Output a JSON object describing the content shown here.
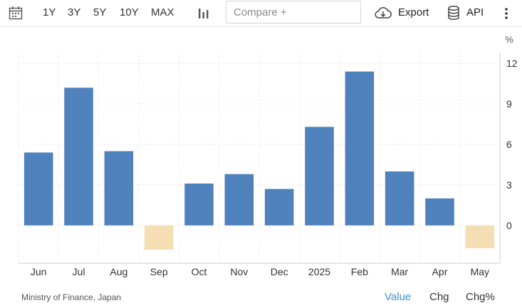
{
  "toolbar": {
    "calendar_icon": "calendar-icon",
    "ranges": [
      "1Y",
      "3Y",
      "5Y",
      "10Y",
      "MAX"
    ],
    "chart_type_icon": "bar-chart-icon",
    "compare_placeholder": "Compare +",
    "export_label": "Export",
    "export_icon": "cloud-download-icon",
    "api_label": "API",
    "api_icon": "database-icon",
    "more_icon": "more-vertical-icon"
  },
  "chart_data": {
    "type": "bar",
    "categories": [
      "Jun",
      "Jul",
      "Aug",
      "Sep",
      "Oct",
      "Nov",
      "Dec",
      "2025",
      "Feb",
      "Mar",
      "Apr",
      "May"
    ],
    "values": [
      5.4,
      10.2,
      5.5,
      -1.8,
      3.1,
      3.8,
      2.7,
      7.3,
      11.4,
      4.0,
      2.0,
      -1.7
    ],
    "unit": "%",
    "yticks": [
      0,
      3,
      6,
      9,
      12
    ],
    "ylim": [
      -2.8,
      12.8
    ],
    "grid": true,
    "axis_position": "right",
    "colors": {
      "positive": "#4f81bd",
      "negative": "#f5deb3",
      "grid": "#e6e6e6"
    }
  },
  "footer": {
    "source": "Ministry of Finance, Japan",
    "modes": [
      "Value",
      "Chg",
      "Chg%"
    ],
    "active_mode": "Value",
    "active_color": "#3d8fd8"
  }
}
